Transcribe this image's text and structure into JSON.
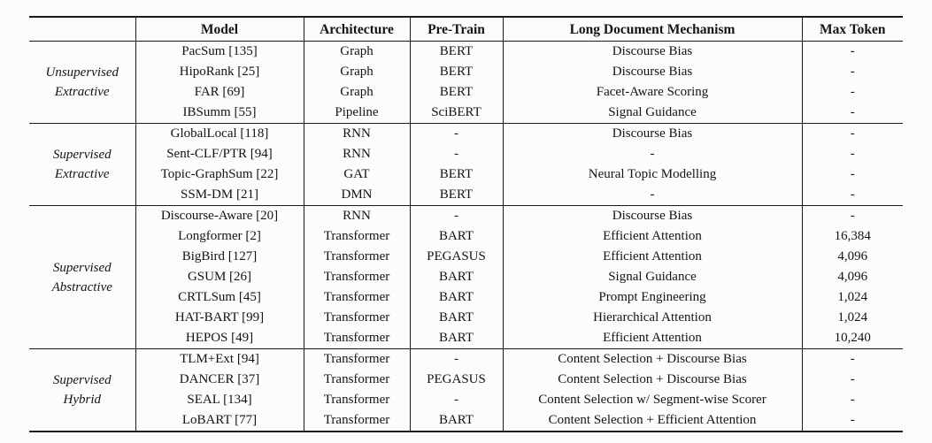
{
  "table": {
    "corner_label": "",
    "headers": [
      "Model",
      "Architecture",
      "Pre-Train",
      "Long Document Mechanism",
      "Max Token"
    ],
    "groups": [
      {
        "label_lines": [
          "Unsupervised",
          "Extractive"
        ],
        "rows": [
          {
            "model": "PacSum [135]",
            "architecture": "Graph",
            "pretrain": "BERT",
            "mechanism": "Discourse Bias",
            "max_token": "-"
          },
          {
            "model": "HipoRank [25]",
            "architecture": "Graph",
            "pretrain": "BERT",
            "mechanism": "Discourse Bias",
            "max_token": "-"
          },
          {
            "model": "FAR [69]",
            "architecture": "Graph",
            "pretrain": "BERT",
            "mechanism": "Facet-Aware Scoring",
            "max_token": "-"
          },
          {
            "model": "IBSumm [55]",
            "architecture": "Pipeline",
            "pretrain": "SciBERT",
            "mechanism": "Signal Guidance",
            "max_token": "-"
          }
        ]
      },
      {
        "label_lines": [
          "Supervised",
          "Extractive"
        ],
        "rows": [
          {
            "model": "GlobalLocal [118]",
            "architecture": "RNN",
            "pretrain": "-",
            "mechanism": "Discourse Bias",
            "max_token": "-"
          },
          {
            "model": "Sent-CLF/PTR [94]",
            "architecture": "RNN",
            "pretrain": "-",
            "mechanism": "-",
            "max_token": "-"
          },
          {
            "model": "Topic-GraphSum [22]",
            "architecture": "GAT",
            "pretrain": "BERT",
            "mechanism": "Neural Topic Modelling",
            "max_token": "-"
          },
          {
            "model": "SSM-DM [21]",
            "architecture": "DMN",
            "pretrain": "BERT",
            "mechanism": "-",
            "max_token": "-"
          }
        ]
      },
      {
        "label_lines": [
          "Supervised",
          "Abstractive"
        ],
        "rows": [
          {
            "model": "Discourse-Aware [20]",
            "architecture": "RNN",
            "pretrain": "-",
            "mechanism": "Discourse Bias",
            "max_token": "-"
          },
          {
            "model": "Longformer [2]",
            "architecture": "Transformer",
            "pretrain": "BART",
            "mechanism": "Efficient Attention",
            "max_token": "16,384"
          },
          {
            "model": "BigBird [127]",
            "architecture": "Transformer",
            "pretrain": "PEGASUS",
            "mechanism": "Efficient Attention",
            "max_token": "4,096"
          },
          {
            "model": "GSUM [26]",
            "architecture": "Transformer",
            "pretrain": "BART",
            "mechanism": "Signal Guidance",
            "max_token": "4,096"
          },
          {
            "model": "CRTLSum [45]",
            "architecture": "Transformer",
            "pretrain": "BART",
            "mechanism": "Prompt Engineering",
            "max_token": "1,024"
          },
          {
            "model": "HAT-BART [99]",
            "architecture": "Transformer",
            "pretrain": "BART",
            "mechanism": "Hierarchical Attention",
            "max_token": "1,024"
          },
          {
            "model": "HEPOS [49]",
            "architecture": "Transformer",
            "pretrain": "BART",
            "mechanism": "Efficient Attention",
            "max_token": "10,240"
          }
        ]
      },
      {
        "label_lines": [
          "Supervised",
          "Hybrid"
        ],
        "rows": [
          {
            "model": "TLM+Ext [94]",
            "architecture": "Transformer",
            "pretrain": "-",
            "mechanism": "Content Selection + Discourse Bias",
            "max_token": "-"
          },
          {
            "model": "DANCER [37]",
            "architecture": "Transformer",
            "pretrain": "PEGASUS",
            "mechanism": "Content Selection + Discourse Bias",
            "max_token": "-"
          },
          {
            "model": "SEAL [134]",
            "architecture": "Transformer",
            "pretrain": "-",
            "mechanism": "Content Selection w/ Segment-wise Scorer",
            "max_token": "-"
          },
          {
            "model": "LoBART [77]",
            "architecture": "Transformer",
            "pretrain": "BART",
            "mechanism": "Content Selection + Efficient Attention",
            "max_token": "-"
          }
        ]
      }
    ]
  }
}
